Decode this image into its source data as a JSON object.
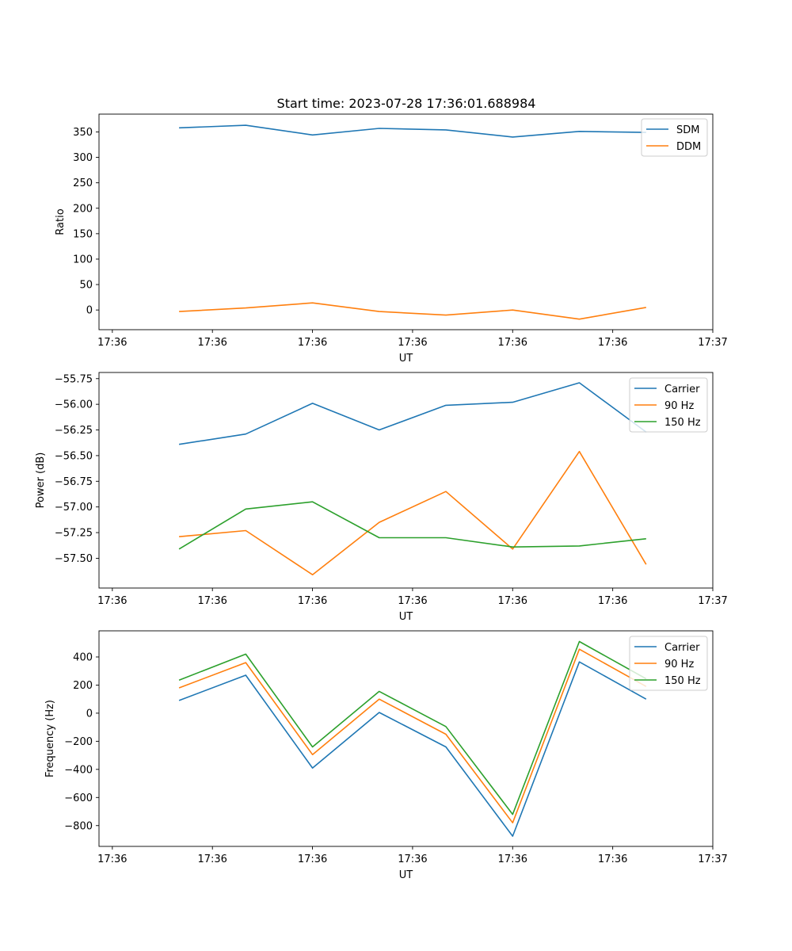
{
  "colors": {
    "c0": "#1f77b4",
    "c1": "#ff7f0e",
    "c2": "#2ca02c"
  },
  "chart_data": [
    {
      "type": "line",
      "title": "Start time: 2023-07-28 17:36:01.688984",
      "xlabel": "UT",
      "ylabel": "Ratio",
      "x_tick_labels": [
        "17:36",
        "17:36",
        "17:36",
        "17:36",
        "17:36",
        "17:36",
        "17:37"
      ],
      "x": [
        1,
        2,
        3,
        4,
        5,
        6,
        7,
        8
      ],
      "xlim": [
        -0.2,
        9.0
      ],
      "x_ticks": [
        0,
        1.5,
        3,
        4.5,
        6,
        7.5,
        9
      ],
      "ylim": [
        -38.7,
        385
      ],
      "yticks": [
        0,
        50,
        100,
        150,
        200,
        250,
        300,
        350
      ],
      "ytick_labels": [
        "0",
        "50",
        "100",
        "150",
        "200",
        "250",
        "300",
        "350"
      ],
      "legend_position": "top-right",
      "grid": false,
      "series": [
        {
          "name": "SDM",
          "color": "#1f77b4",
          "values": [
            358,
            363,
            344,
            357,
            354,
            340,
            351,
            349
          ]
        },
        {
          "name": "DDM",
          "color": "#ff7f0e",
          "values": [
            -3,
            4,
            14,
            -3,
            -10,
            0,
            -18,
            5
          ]
        }
      ]
    },
    {
      "type": "line",
      "title": "",
      "xlabel": "UT",
      "ylabel": "Power (dB)",
      "x_tick_labels": [
        "17:36",
        "17:36",
        "17:36",
        "17:36",
        "17:36",
        "17:36",
        "17:37"
      ],
      "x": [
        1,
        2,
        3,
        4,
        5,
        6,
        7,
        8
      ],
      "xlim": [
        -0.2,
        9.0
      ],
      "x_ticks": [
        0,
        1.5,
        3,
        4.5,
        6,
        7.5,
        9
      ],
      "ylim": [
        -57.79,
        -55.69
      ],
      "yticks": [
        -57.5,
        -57.25,
        -57.0,
        -56.75,
        -56.5,
        -56.25,
        -56.0,
        -55.75
      ],
      "ytick_labels": [
        "−57.50",
        "−57.25",
        "−57.00",
        "−56.75",
        "−56.50",
        "−56.25",
        "−56.00",
        "−55.75"
      ],
      "legend_position": "top-right",
      "grid": false,
      "series": [
        {
          "name": "Carrier",
          "color": "#1f77b4",
          "values": [
            -56.39,
            -56.29,
            -55.99,
            -56.25,
            -56.01,
            -55.98,
            -55.79,
            -56.27
          ]
        },
        {
          "name": "90 Hz",
          "color": "#ff7f0e",
          "values": [
            -57.29,
            -57.23,
            -57.66,
            -57.15,
            -56.85,
            -57.41,
            -56.46,
            -57.56
          ]
        },
        {
          "name": "150 Hz",
          "color": "#2ca02c",
          "values": [
            -57.41,
            -57.02,
            -56.95,
            -57.3,
            -57.3,
            -57.39,
            -57.38,
            -57.31
          ]
        }
      ]
    },
    {
      "type": "line",
      "title": "",
      "xlabel": "UT",
      "ylabel": "Frequency (Hz)",
      "x_tick_labels": [
        "17:36",
        "17:36",
        "17:36",
        "17:36",
        "17:36",
        "17:36",
        "17:37"
      ],
      "x": [
        1,
        2,
        3,
        4,
        5,
        6,
        7,
        8
      ],
      "xlim": [
        -0.2,
        9.0
      ],
      "x_ticks": [
        0,
        1.5,
        3,
        4.5,
        6,
        7.5,
        9
      ],
      "ylim": [
        -948,
        586
      ],
      "yticks": [
        -800,
        -600,
        -400,
        -200,
        0,
        200,
        400
      ],
      "ytick_labels": [
        "−800",
        "−600",
        "−400",
        "−200",
        "0",
        "200",
        "400"
      ],
      "legend_position": "top-right",
      "grid": false,
      "series": [
        {
          "name": "Carrier",
          "color": "#1f77b4",
          "values": [
            90,
            270,
            -390,
            5,
            -240,
            -875,
            365,
            100
          ]
        },
        {
          "name": "90 Hz",
          "color": "#ff7f0e",
          "values": [
            180,
            360,
            -295,
            100,
            -150,
            -780,
            455,
            190
          ]
        },
        {
          "name": "150 Hz",
          "color": "#2ca02c",
          "values": [
            235,
            420,
            -240,
            155,
            -95,
            -720,
            510,
            245
          ]
        }
      ]
    }
  ]
}
